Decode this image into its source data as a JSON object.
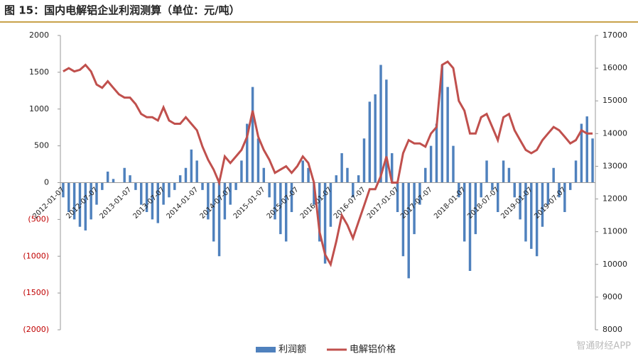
{
  "chart_data": {
    "type": "bar-line",
    "title": "图 15：国内电解铝企业利润测算（单位：元/吨）",
    "watermark": "智通财经APP",
    "categories": [
      "2012-01-07",
      null,
      null,
      null,
      null,
      null,
      "2012-07-07",
      null,
      null,
      null,
      null,
      null,
      "2013-01-07",
      null,
      null,
      null,
      null,
      null,
      "2013-07-07",
      null,
      null,
      null,
      null,
      null,
      "2014-01-07",
      null,
      null,
      null,
      null,
      null,
      "2014-07-07",
      null,
      null,
      null,
      null,
      null,
      "2015-01-07",
      null,
      null,
      null,
      null,
      null,
      "2015-07-07",
      null,
      null,
      null,
      null,
      null,
      "2016-01-07",
      null,
      null,
      null,
      null,
      null,
      "2016-07-07",
      null,
      null,
      null,
      null,
      null,
      "2017-01-07",
      null,
      null,
      null,
      null,
      null,
      "2017-07-07",
      null,
      null,
      null,
      null,
      null,
      "2018-01-07",
      null,
      null,
      null,
      null,
      null,
      "2018-07-07",
      null,
      null,
      null,
      null,
      null,
      "2019-01-07",
      null,
      null,
      null,
      null,
      null,
      "2019-07-07",
      null,
      null,
      null,
      null,
      null
    ],
    "series": [
      {
        "name": "利润额",
        "color": "#4f81bd",
        "values": [
          -200,
          -400,
          -500,
          -600,
          -650,
          -500,
          -300,
          -100,
          150,
          50,
          0,
          200,
          100,
          -100,
          -300,
          -400,
          -500,
          -550,
          -300,
          -200,
          -100,
          100,
          200,
          450,
          300,
          -100,
          -500,
          -800,
          -1000,
          -500,
          -300,
          -100,
          300,
          800,
          1300,
          600,
          200,
          -200,
          -500,
          -700,
          -800,
          -400,
          0,
          300,
          200,
          -300,
          -800,
          -1100,
          -600,
          100,
          400,
          200,
          -200,
          100,
          600,
          1100,
          1200,
          1600,
          1400,
          400,
          -400,
          -1000,
          -1300,
          -700,
          -300,
          200,
          500,
          800,
          1600,
          1300,
          500,
          -200,
          -800,
          -1200,
          -700,
          -200,
          300,
          -100,
          -400,
          300,
          200,
          -200,
          -500,
          -800,
          -900,
          -1000,
          -600,
          -300,
          200,
          -200,
          -400,
          -100,
          300,
          800,
          900,
          600
        ]
      },
      {
        "name": "电解铝价格",
        "color": "#c0504d",
        "axis": "y2",
        "values": [
          15900,
          16000,
          15900,
          15950,
          16100,
          15900,
          15500,
          15400,
          15600,
          15400,
          15200,
          15100,
          15100,
          14900,
          14600,
          14500,
          14500,
          14400,
          14800,
          14400,
          14300,
          14300,
          14500,
          14300,
          14100,
          13600,
          13200,
          12900,
          12500,
          13300,
          13100,
          13300,
          13500,
          13900,
          14700,
          13900,
          13500,
          13200,
          12800,
          12900,
          13000,
          12800,
          13000,
          13300,
          13100,
          12500,
          11000,
          10300,
          10000,
          10700,
          11500,
          11200,
          10800,
          11300,
          11800,
          12300,
          12300,
          12700,
          13300,
          12500,
          12500,
          13400,
          13800,
          13700,
          13700,
          13600,
          14000,
          14200,
          16100,
          16200,
          16000,
          15000,
          14700,
          14000,
          14000,
          14500,
          14600,
          14200,
          13800,
          14500,
          14600,
          14100,
          13800,
          13500,
          13400,
          13500,
          13800,
          14000,
          14200,
          14100,
          13900,
          13700,
          13800,
          14100,
          14000,
          14000
        ]
      }
    ],
    "ylim": [
      -2000,
      2000
    ],
    "yticks": [
      {
        "value": -2000,
        "label": "(2000)"
      },
      {
        "value": -1500,
        "label": "(1500)"
      },
      {
        "value": -1000,
        "label": "(1000)"
      },
      {
        "value": -500,
        "label": "(500)"
      },
      0,
      500,
      1000,
      1500,
      2000
    ],
    "negative_tick_color": "#c00000",
    "y2lim": [
      8000,
      17000
    ],
    "y2ticks": [
      8000,
      9000,
      10000,
      11000,
      12000,
      13000,
      14000,
      15000,
      16000,
      17000
    ],
    "grid": false
  }
}
